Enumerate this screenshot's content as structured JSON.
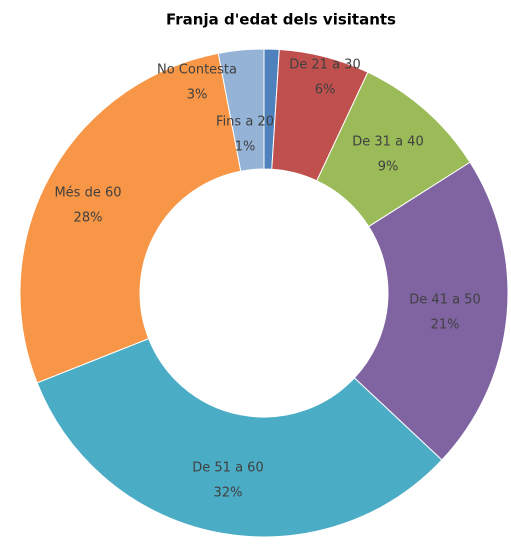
{
  "chart_data": {
    "type": "donut",
    "title": "Franja d'edat dels visitants",
    "categories": [
      "Fins a 20",
      "De 21 a 30",
      "De 31 a 40",
      "De 41 a 50",
      "De 51 a 60",
      "Més de 60",
      "No Contesta"
    ],
    "values": [
      1,
      6,
      9,
      21,
      32,
      28,
      3
    ],
    "value_labels": [
      "1%",
      "6%",
      "9%",
      "21%",
      "32%",
      "28%",
      "3%"
    ],
    "colors": [
      "#4f81bd",
      "#c0504d",
      "#9bbb59",
      "#8064a2",
      "#4bacc6",
      "#f79646",
      "#95b3d7"
    ]
  }
}
